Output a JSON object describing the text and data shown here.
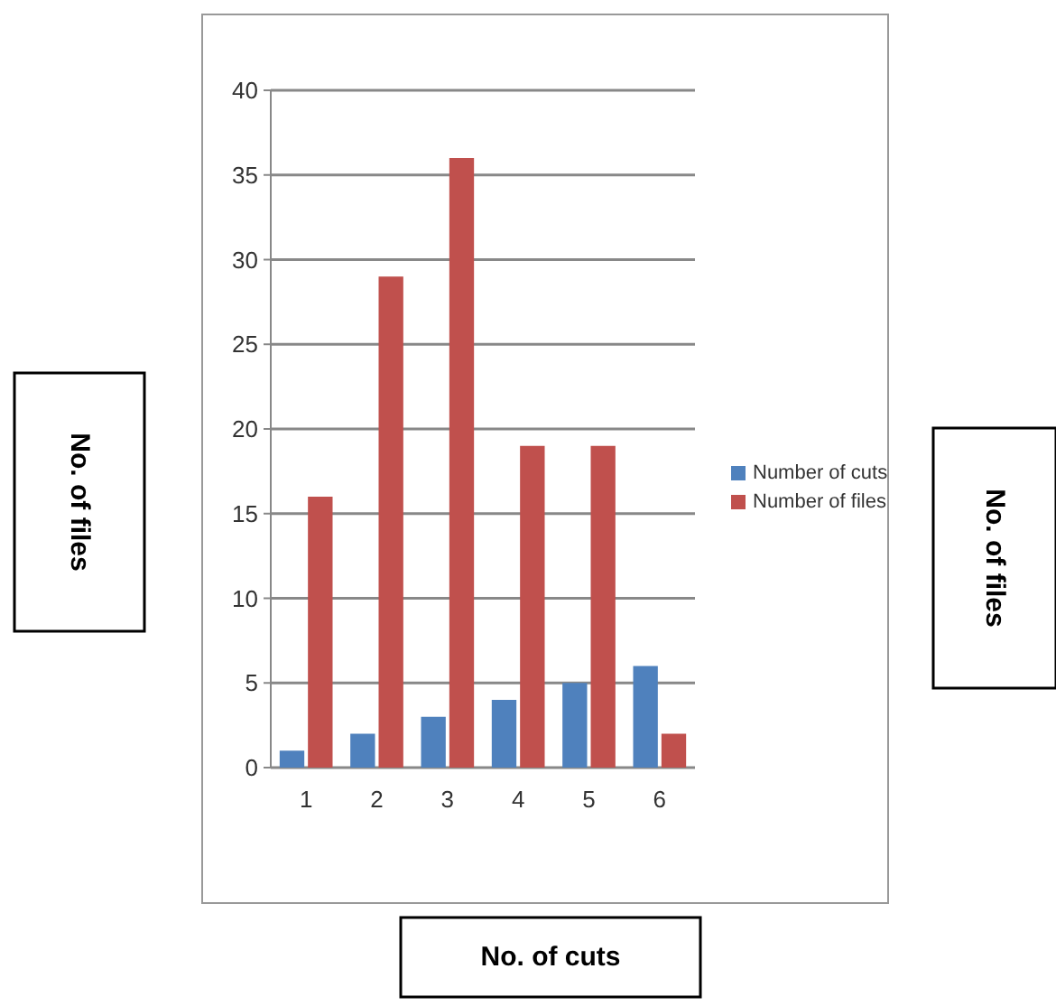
{
  "chart_data": {
    "type": "bar",
    "xlabel": "No. of cuts",
    "annotations": [
      "No. of files",
      "No. of files"
    ],
    "categories": [
      "1",
      "2",
      "3",
      "4",
      "5",
      "6"
    ],
    "series": [
      {
        "name": "Number of cuts",
        "color": "#4f81bd",
        "values": [
          1,
          2,
          3,
          4,
          5,
          6
        ]
      },
      {
        "name": "Number of files",
        "color": "#c0504d",
        "values": [
          16,
          29,
          36,
          19,
          19,
          2
        ]
      }
    ],
    "ylim": [
      0,
      40
    ],
    "yticks": [
      0,
      5,
      10,
      15,
      20,
      25,
      30,
      35,
      40
    ],
    "grid": "y",
    "legend": "right"
  }
}
